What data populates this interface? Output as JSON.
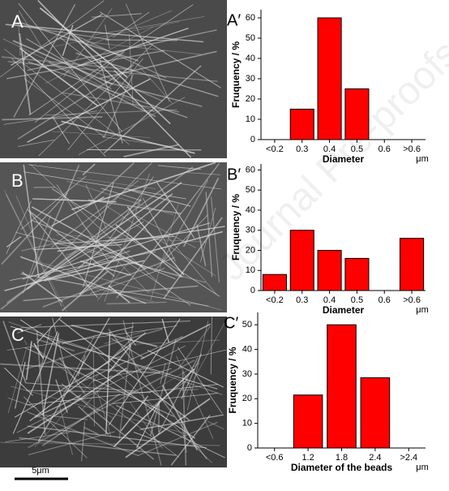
{
  "panels": {
    "image_labels": [
      "A",
      "B",
      "C"
    ],
    "scale_bar": "5μm",
    "watermark": "Journal Pre-proofs"
  },
  "chart_data": [
    {
      "type": "bar",
      "label": "A′",
      "ylabel": "Fruquency / %",
      "xlabel": "Diameter",
      "unit": "μm",
      "categories": [
        "<0.2",
        "0.3",
        "0.4",
        "0.5",
        "0.6",
        ">0.6"
      ],
      "values": [
        0,
        15,
        60,
        25,
        0,
        0
      ],
      "color": "#ff0000",
      "ylim": [
        0,
        64
      ],
      "yticks": [
        0,
        10,
        20,
        30,
        40,
        50,
        60
      ]
    },
    {
      "type": "bar",
      "label": "B′",
      "ylabel": "Fruquency / %",
      "xlabel": "Diameter",
      "unit": "μm",
      "categories": [
        "<0.2",
        "0.3",
        "0.4",
        "0.5",
        "0.6",
        ">0.6"
      ],
      "values": [
        8,
        30,
        20,
        16,
        0,
        26
      ],
      "color": "#ff0000",
      "ylim": [
        0,
        63
      ],
      "yticks": [
        0,
        10,
        20,
        30,
        40,
        50,
        60
      ]
    },
    {
      "type": "bar",
      "label": "C′",
      "ylabel": "Fruquency / %",
      "xlabel": "Diameter of the beads",
      "unit": "μm",
      "categories": [
        "<0.6",
        "1.2",
        "1.8",
        "2.4",
        ">2.4"
      ],
      "values": [
        0,
        21.5,
        50,
        28.5,
        0
      ],
      "color": "#ff0000",
      "ylim": [
        0,
        55
      ],
      "yticks": [
        0,
        10,
        20,
        30,
        40,
        50
      ]
    }
  ]
}
